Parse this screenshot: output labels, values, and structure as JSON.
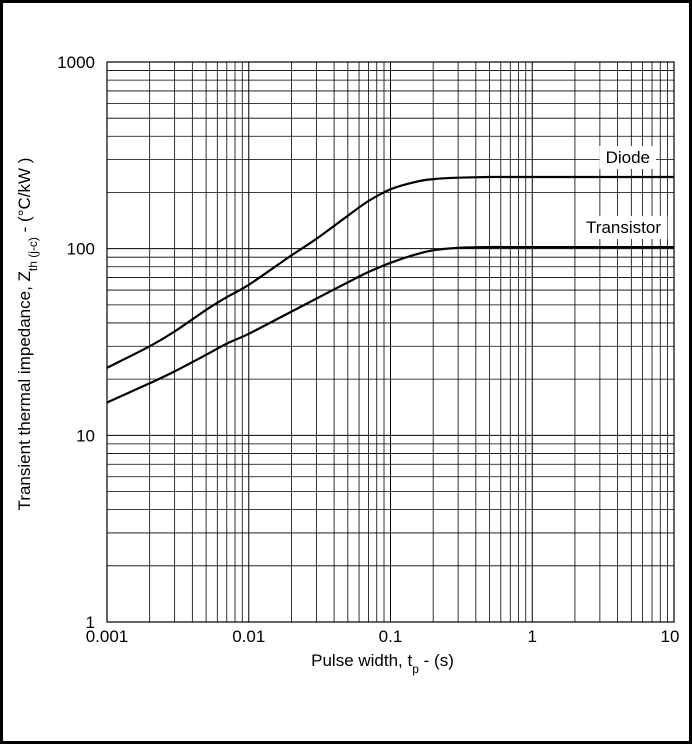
{
  "chart_data": {
    "type": "line",
    "xscale": "log",
    "yscale": "log",
    "xlim": [
      0.001,
      10
    ],
    "ylim": [
      1,
      1000
    ],
    "grid": true,
    "x_ticks": [
      "0.001",
      "0.01",
      "0.1",
      "1",
      "10"
    ],
    "y_ticks": [
      "1",
      "10",
      "100",
      "1000"
    ],
    "xlabel": {
      "main": "Pulse width, t",
      "sub": "p",
      "tail": " - (s)"
    },
    "ylabel": {
      "main": "Transient thermal impedance, Z",
      "sub": "th (j-c)",
      "tail": " - (°C/kW )"
    },
    "series": [
      {
        "name": "Diode",
        "x": [
          0.001,
          0.002,
          0.003,
          0.005,
          0.007,
          0.01,
          0.02,
          0.03,
          0.05,
          0.07,
          0.1,
          0.15,
          0.2,
          0.3,
          0.5,
          0.7,
          1,
          2,
          5,
          10
        ],
        "values": [
          23,
          30,
          36,
          47,
          55,
          64,
          92,
          113,
          150,
          180,
          208,
          228,
          236,
          240,
          242,
          242,
          242,
          242,
          242,
          242
        ]
      },
      {
        "name": "Transistor",
        "x": [
          0.001,
          0.002,
          0.003,
          0.005,
          0.007,
          0.01,
          0.02,
          0.03,
          0.05,
          0.07,
          0.1,
          0.15,
          0.2,
          0.3,
          0.5,
          0.7,
          1,
          2,
          5,
          10
        ],
        "values": [
          15,
          19,
          22,
          27,
          31,
          35,
          46,
          54,
          66,
          75,
          84,
          93,
          98,
          101,
          102,
          102,
          102,
          102,
          102,
          102
        ]
      }
    ]
  }
}
